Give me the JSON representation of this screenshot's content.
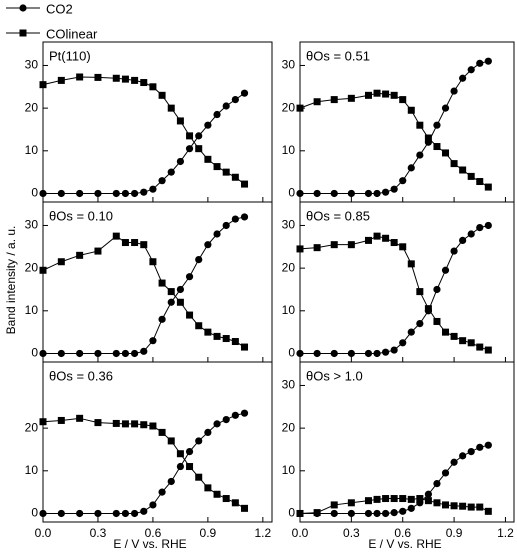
{
  "ylabel": "Band intensity / a. u.",
  "xlabel": "E / V vs. RHE",
  "chart_data": [
    {
      "type": "line",
      "label": "Pt(110)",
      "x": [
        0,
        0.1,
        0.2,
        0.3,
        0.4,
        0.45,
        0.5,
        0.55,
        0.6,
        0.65,
        0.7,
        0.75,
        0.8,
        0.85,
        0.9,
        0.95,
        1.0,
        1.05,
        1.1
      ],
      "series": [
        {
          "name": "CO2",
          "color": "#000000",
          "marker": "circle",
          "values": [
            0,
            0,
            0,
            0,
            0,
            0,
            0,
            0.3,
            1,
            3,
            5,
            7.5,
            10.5,
            13.5,
            16,
            18.5,
            20.5,
            22,
            23.5
          ]
        },
        {
          "name": "COlinear",
          "color": "#000000",
          "marker": "square",
          "values": [
            25.5,
            26.5,
            27.3,
            27.2,
            27,
            26.8,
            26.5,
            26,
            25,
            23,
            20,
            17,
            13.5,
            10.5,
            8,
            6.3,
            5,
            3.8,
            2.2
          ]
        }
      ],
      "xlim": [
        0,
        1.25
      ],
      "xticks": [
        0,
        0.3,
        0.6,
        0.9,
        1.2
      ],
      "ylim": [
        -2,
        35.5
      ],
      "yticks": [
        0,
        10,
        20,
        30
      ]
    },
    {
      "type": "line",
      "label": "θOs = 0.51",
      "x": [
        0,
        0.1,
        0.2,
        0.3,
        0.4,
        0.45,
        0.5,
        0.55,
        0.6,
        0.65,
        0.7,
        0.75,
        0.8,
        0.85,
        0.9,
        0.95,
        1.0,
        1.05,
        1.1
      ],
      "series": [
        {
          "color": "#000000",
          "marker": "circle",
          "values": [
            0,
            0,
            0,
            0,
            0,
            0,
            0.3,
            1,
            3,
            6,
            9,
            12,
            16,
            20,
            24,
            27,
            29,
            30.5,
            31
          ]
        },
        {
          "color": "#000000",
          "marker": "square",
          "values": [
            20,
            21.5,
            22,
            22.3,
            23,
            23.5,
            23.3,
            23,
            22,
            19.5,
            16,
            13,
            11,
            9.5,
            7,
            5.5,
            4,
            2.8,
            1.5
          ]
        }
      ],
      "xlim": [
        0,
        1.25
      ],
      "xticks": [
        0,
        0.3,
        0.6,
        0.9,
        1.2
      ],
      "ylim": [
        -2,
        35.5
      ],
      "yticks": [
        0,
        10,
        20,
        30
      ]
    },
    {
      "type": "line",
      "label": "θOs = 0.10",
      "x": [
        0,
        0.1,
        0.2,
        0.3,
        0.4,
        0.45,
        0.5,
        0.55,
        0.6,
        0.65,
        0.7,
        0.75,
        0.8,
        0.85,
        0.9,
        0.95,
        1.0,
        1.05,
        1.1
      ],
      "series": [
        {
          "color": "#000000",
          "marker": "circle",
          "values": [
            0,
            0,
            0,
            0,
            0,
            0,
            0,
            0.5,
            3,
            8,
            12,
            15,
            18,
            22,
            25.5,
            28,
            30,
            31.5,
            32
          ]
        },
        {
          "color": "#000000",
          "marker": "square",
          "values": [
            19.5,
            21.5,
            23,
            24,
            27.5,
            26,
            26,
            25.5,
            21.5,
            16.5,
            14.5,
            12,
            9,
            6.5,
            5,
            4,
            3.5,
            2.8,
            1.5
          ]
        }
      ],
      "xlim": [
        0,
        1.25
      ],
      "xticks": [
        0,
        0.3,
        0.6,
        0.9,
        1.2
      ],
      "ylim": [
        -2,
        35.5
      ],
      "yticks": [
        0,
        10,
        20,
        30
      ]
    },
    {
      "type": "line",
      "label": "θOs = 0.85",
      "x": [
        0,
        0.1,
        0.2,
        0.3,
        0.4,
        0.45,
        0.5,
        0.55,
        0.6,
        0.65,
        0.7,
        0.75,
        0.8,
        0.85,
        0.9,
        0.95,
        1.0,
        1.05,
        1.1
      ],
      "series": [
        {
          "color": "#000000",
          "marker": "circle",
          "values": [
            0,
            0,
            0,
            0,
            0,
            0,
            0.3,
            0.8,
            2.5,
            5,
            7,
            10,
            15,
            19.5,
            24,
            26.5,
            28,
            29.5,
            30
          ]
        },
        {
          "color": "#000000",
          "marker": "square",
          "values": [
            24.5,
            24.8,
            25.5,
            25.5,
            26.5,
            27.5,
            27,
            26,
            25,
            21,
            14.5,
            10.5,
            7.5,
            5,
            4,
            3,
            2.5,
            1.5,
            0.8
          ]
        }
      ],
      "xlim": [
        0,
        1.25
      ],
      "xticks": [
        0,
        0.3,
        0.6,
        0.9,
        1.2
      ],
      "ylim": [
        -2,
        35.5
      ],
      "yticks": [
        0,
        10,
        20,
        30
      ]
    },
    {
      "type": "line",
      "label": "θOs = 0.36",
      "x": [
        0,
        0.1,
        0.2,
        0.3,
        0.4,
        0.45,
        0.5,
        0.55,
        0.6,
        0.65,
        0.7,
        0.75,
        0.8,
        0.85,
        0.9,
        0.95,
        1.0,
        1.05,
        1.1
      ],
      "series": [
        {
          "color": "#000000",
          "marker": "circle",
          "values": [
            0,
            0,
            0,
            0,
            0,
            0,
            0,
            0.5,
            2,
            5,
            7.5,
            11,
            14.5,
            17,
            19,
            21,
            22,
            23,
            23.5
          ]
        },
        {
          "color": "#000000",
          "marker": "square",
          "values": [
            21.5,
            21.8,
            22.3,
            21.3,
            21.1,
            21,
            21,
            20.8,
            20.5,
            19,
            17,
            14,
            11,
            8.5,
            6,
            4.5,
            3.5,
            2.5,
            1.2
          ]
        }
      ],
      "xlim": [
        0,
        1.25
      ],
      "xticks": [
        {
          "value": 0,
          "label": "0.0"
        },
        {
          "value": 0.3,
          "label": "0.3"
        },
        {
          "value": 0.6,
          "label": "0.6"
        },
        {
          "value": 0.9,
          "label": "0.9"
        },
        {
          "value": 1.2,
          "label": "1.2"
        }
      ],
      "ylim": [
        -2,
        35.5
      ],
      "yticks": [
        0,
        10,
        20
      ]
    },
    {
      "type": "line",
      "label": "θOs > 1.0",
      "x": [
        0,
        0.1,
        0.2,
        0.3,
        0.4,
        0.45,
        0.5,
        0.55,
        0.6,
        0.65,
        0.7,
        0.75,
        0.8,
        0.85,
        0.9,
        0.95,
        1.0,
        1.05,
        1.1
      ],
      "series": [
        {
          "color": "#000000",
          "marker": "circle",
          "values": [
            0,
            0,
            0,
            0,
            0,
            0,
            0,
            0.2,
            0.5,
            1.2,
            2.5,
            4.5,
            7,
            9.5,
            12,
            13.5,
            14.5,
            15.5,
            16
          ]
        },
        {
          "color": "#000000",
          "marker": "square",
          "values": [
            0,
            0.2,
            2,
            2.5,
            3,
            3.3,
            3.5,
            3.5,
            3.5,
            3.3,
            3.5,
            3,
            2.5,
            2,
            1.8,
            1.7,
            1.5,
            1.5,
            0.5
          ]
        }
      ],
      "xlim": [
        0,
        1.25
      ],
      "xticks": [
        {
          "value": 0,
          "label": "0.0"
        },
        {
          "value": 0.3,
          "label": "0.3"
        },
        {
          "value": 0.6,
          "label": "0.6"
        },
        {
          "value": 0.9,
          "label": "0.9"
        },
        {
          "value": 1.2,
          "label": "1.2"
        }
      ],
      "ylim": [
        -2,
        35.5
      ],
      "yticks": [
        0,
        10,
        20,
        30
      ]
    }
  ]
}
